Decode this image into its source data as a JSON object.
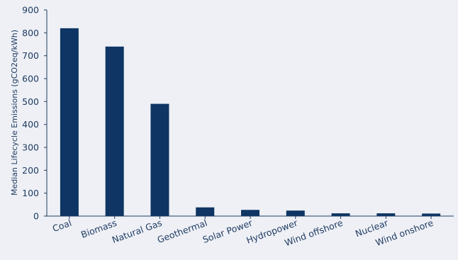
{
  "chart_data": {
    "type": "bar",
    "title": "",
    "xlabel": "",
    "ylabel": "Median Lifecycle Emissions (gCO2eq/kWh)",
    "categories": [
      "Coal",
      "Biomass",
      "Natural Gas",
      "Geothermal",
      "Solar Power",
      "Hydropower",
      "Wind offshore",
      "Nuclear",
      "Wind onshore"
    ],
    "values": [
      820,
      740,
      490,
      38,
      27,
      24,
      12,
      12,
      11
    ],
    "ylim": [
      0,
      900
    ],
    "yticks": [
      0,
      100,
      200,
      300,
      400,
      500,
      600,
      700,
      800,
      900
    ],
    "grid": false,
    "legend": "none",
    "colors": {
      "bar": "#0e3564",
      "axis": "#1f3b63",
      "background": "#eef0f5"
    }
  }
}
